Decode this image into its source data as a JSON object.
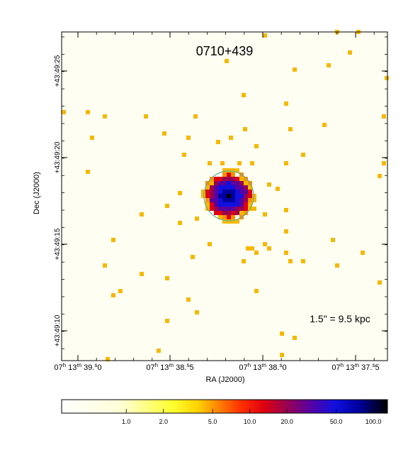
{
  "title": "0710+439",
  "scale_label": "1.5\" = 9.5 kpc",
  "xlabel": "RA (J2000)",
  "ylabel": "Dec (J2000)",
  "ra_ticks": [
    {
      "h": "07",
      "m": "13",
      "s": "39.0"
    },
    {
      "h": "07",
      "m": "13",
      "s": "38.5"
    },
    {
      "h": "07",
      "m": "13",
      "s": "38.0"
    },
    {
      "h": "07",
      "m": "13",
      "s": "37.5"
    }
  ],
  "dec_ticks": [
    "+43:49:25",
    "+43:49:20",
    "+43:49:15",
    "+43:49:10"
  ],
  "colorbar": {
    "ticks": [
      "1.0",
      "2.0",
      "5.0",
      "10.0",
      "20.0",
      "50.0",
      "100.0"
    ],
    "values": [
      1,
      2,
      5,
      10,
      20,
      50,
      100
    ],
    "scale": "log"
  },
  "colors": {
    "background": "#fefef2",
    "counts_1": "#f5b800",
    "ring": "#5db08e",
    "colormap": [
      "#ffffff",
      "#ffffd8",
      "#ffff30",
      "#ffd000",
      "#ff9000",
      "#ff3000",
      "#e00010",
      "#9a0050",
      "#5a00a0",
      "#1010e0",
      "#0000a0",
      "#000000"
    ]
  }
}
